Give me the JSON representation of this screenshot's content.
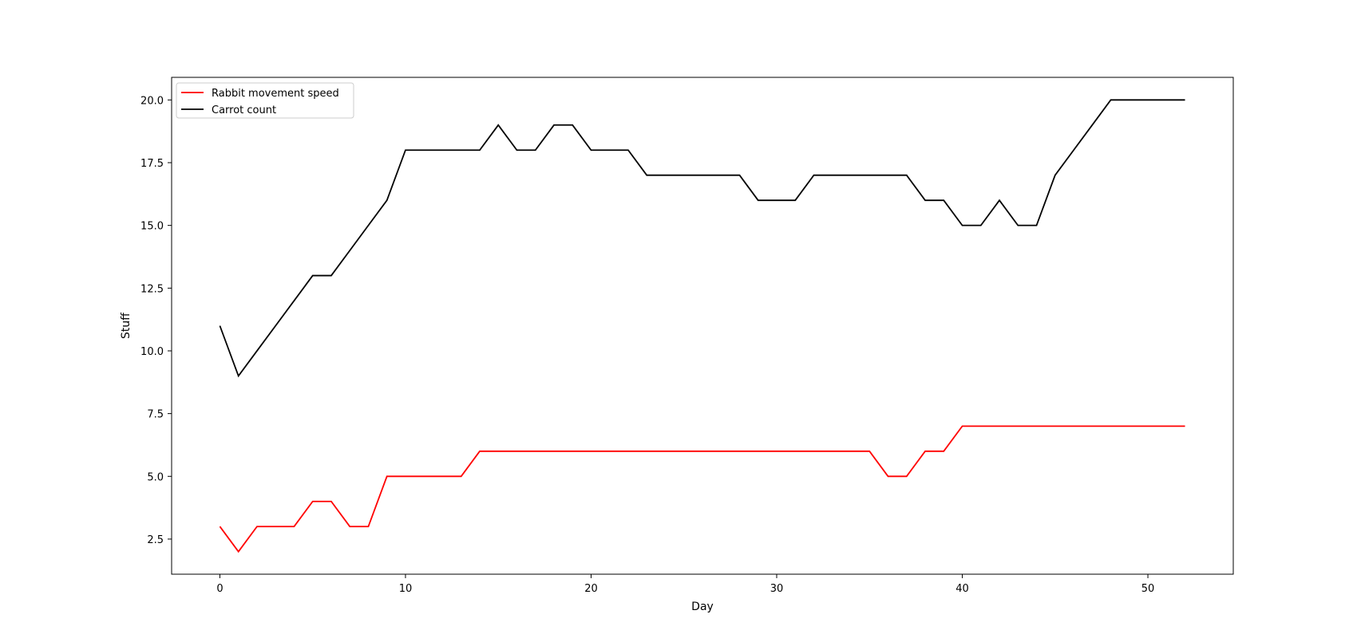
{
  "chart_data": {
    "type": "line",
    "title": "",
    "xlabel": "Day",
    "ylabel": "Stuff",
    "xlim": [
      -2.6,
      54.6
    ],
    "ylim": [
      1.1,
      20.9
    ],
    "xticks": [
      0,
      10,
      20,
      30,
      40,
      50
    ],
    "yticks": [
      2.5,
      5.0,
      7.5,
      10.0,
      12.5,
      15.0,
      17.5,
      20.0
    ],
    "ytick_labels": [
      "2.5",
      "5.0",
      "7.5",
      "10.0",
      "12.5",
      "15.0",
      "17.5",
      "20.0"
    ],
    "grid": false,
    "legend_position": "upper-left",
    "x": [
      0,
      1,
      2,
      3,
      4,
      5,
      6,
      7,
      8,
      9,
      10,
      11,
      12,
      13,
      14,
      15,
      16,
      17,
      18,
      19,
      20,
      21,
      22,
      23,
      24,
      25,
      26,
      27,
      28,
      29,
      30,
      31,
      32,
      33,
      34,
      35,
      36,
      37,
      38,
      39,
      40,
      41,
      42,
      43,
      44,
      45,
      46,
      47,
      48,
      49,
      50,
      51,
      52
    ],
    "series": [
      {
        "name": "Rabbit movement speed",
        "color": "#ff0000",
        "values": [
          3,
          2,
          3,
          3,
          3,
          4,
          4,
          3,
          3,
          5,
          5,
          5,
          5,
          5,
          6,
          6,
          6,
          6,
          6,
          6,
          6,
          6,
          6,
          6,
          6,
          6,
          6,
          6,
          6,
          6,
          6,
          6,
          6,
          6,
          6,
          6,
          5,
          5,
          6,
          6,
          7,
          7,
          7,
          7,
          7,
          7,
          7,
          7,
          7,
          7,
          7,
          7,
          7
        ]
      },
      {
        "name": "Carrot count",
        "color": "#000000",
        "values": [
          11,
          9,
          10,
          11,
          12,
          13,
          13,
          14,
          15,
          16,
          18,
          18,
          18,
          18,
          18,
          19,
          18,
          18,
          19,
          19,
          18,
          18,
          18,
          17,
          17,
          17,
          17,
          17,
          17,
          16,
          16,
          16,
          17,
          17,
          17,
          17,
          17,
          17,
          16,
          16,
          15,
          15,
          16,
          15,
          15,
          17,
          18,
          19,
          20,
          20,
          20,
          20,
          20
        ]
      }
    ]
  }
}
